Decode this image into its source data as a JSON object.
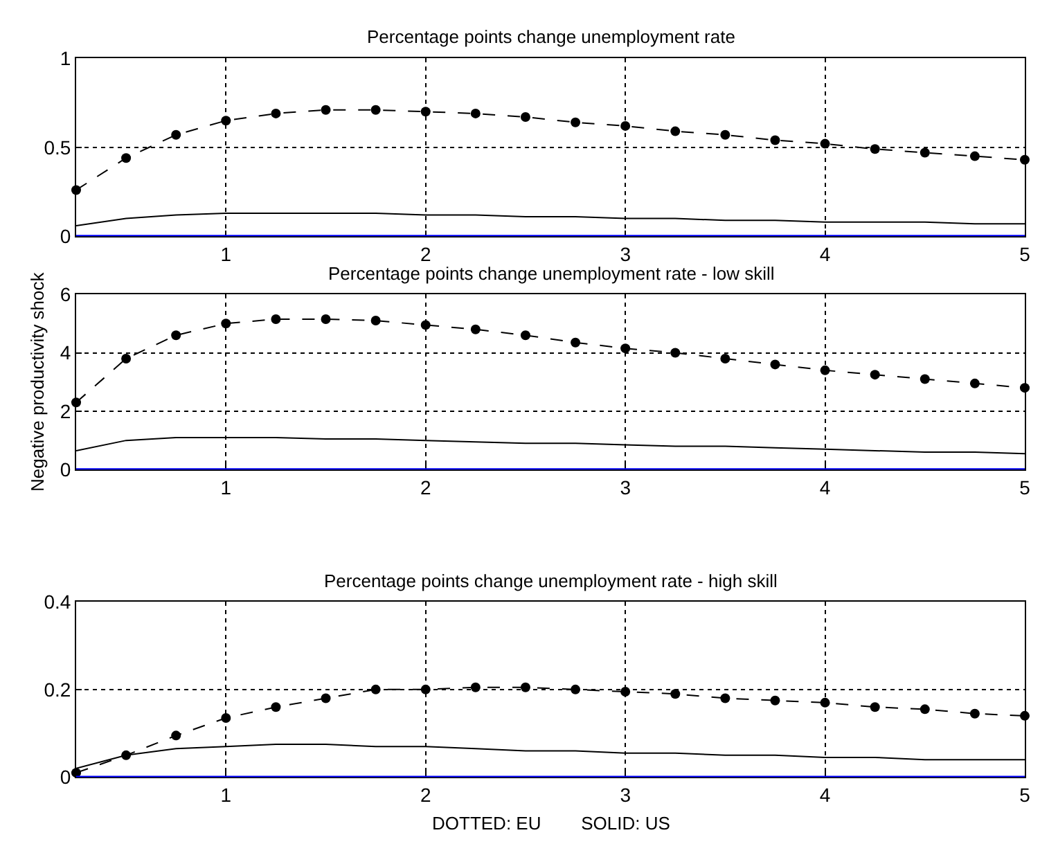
{
  "chart_data": [
    {
      "type": "line",
      "title": "Percentage points change unemployment rate",
      "x": [
        0.25,
        0.5,
        0.75,
        1,
        1.25,
        1.5,
        1.75,
        2,
        2.25,
        2.5,
        2.75,
        3,
        3.25,
        3.5,
        3.75,
        4,
        4.25,
        4.5,
        4.75,
        5
      ],
      "xlim": [
        0.25,
        5
      ],
      "xticks": [
        1,
        2,
        3,
        4,
        5
      ],
      "ylim": [
        0,
        1
      ],
      "yticks": [
        0,
        0.5,
        1
      ],
      "grid": true,
      "series": [
        {
          "color": "#000000",
          "line_style": "dashed",
          "marker": "circle",
          "values": [
            0.26,
            0.44,
            0.57,
            0.65,
            0.69,
            0.71,
            0.71,
            0.7,
            0.69,
            0.67,
            0.64,
            0.62,
            0.59,
            0.57,
            0.54,
            0.52,
            0.49,
            0.47,
            0.45,
            0.43
          ]
        },
        {
          "color": "#000000",
          "line_style": "solid",
          "marker": "none",
          "values": [
            0.06,
            0.1,
            0.12,
            0.13,
            0.13,
            0.13,
            0.13,
            0.12,
            0.12,
            0.11,
            0.11,
            0.1,
            0.1,
            0.09,
            0.09,
            0.08,
            0.08,
            0.08,
            0.07,
            0.07
          ]
        }
      ],
      "ref_lines": [
        {
          "axis": "y",
          "value": 0,
          "color": "#0000ff"
        }
      ]
    },
    {
      "type": "line",
      "title": "Percentage points change unemployment rate - low skill",
      "ylabel": "Negative productivity shock",
      "x": [
        0.25,
        0.5,
        0.75,
        1,
        1.25,
        1.5,
        1.75,
        2,
        2.25,
        2.5,
        2.75,
        3,
        3.25,
        3.5,
        3.75,
        4,
        4.25,
        4.5,
        4.75,
        5
      ],
      "xlim": [
        0.25,
        5
      ],
      "xticks": [
        1,
        2,
        3,
        4,
        5
      ],
      "ylim": [
        0,
        6
      ],
      "yticks": [
        0,
        2,
        4,
        6
      ],
      "grid": true,
      "series": [
        {
          "color": "#000000",
          "line_style": "dashed",
          "marker": "circle",
          "values": [
            2.3,
            3.8,
            4.6,
            5.0,
            5.15,
            5.15,
            5.1,
            4.95,
            4.8,
            4.6,
            4.35,
            4.15,
            4.0,
            3.8,
            3.6,
            3.4,
            3.25,
            3.1,
            2.95,
            2.8
          ]
        },
        {
          "color": "#000000",
          "line_style": "solid",
          "marker": "none",
          "values": [
            0.65,
            1.0,
            1.1,
            1.1,
            1.1,
            1.05,
            1.05,
            1.0,
            0.95,
            0.9,
            0.9,
            0.85,
            0.8,
            0.8,
            0.75,
            0.7,
            0.65,
            0.6,
            0.6,
            0.55
          ]
        }
      ],
      "ref_lines": [
        {
          "axis": "y",
          "value": 0,
          "color": "#0000ff"
        }
      ]
    },
    {
      "type": "line",
      "title": "Percentage points change unemployment rate - high skill",
      "x": [
        0.25,
        0.5,
        0.75,
        1,
        1.25,
        1.5,
        1.75,
        2,
        2.25,
        2.5,
        2.75,
        3,
        3.25,
        3.5,
        3.75,
        4,
        4.25,
        4.5,
        4.75,
        5
      ],
      "xlim": [
        0.25,
        5
      ],
      "xticks": [
        1,
        2,
        3,
        4,
        5
      ],
      "ylim": [
        0,
        0.4
      ],
      "yticks": [
        0,
        0.2,
        0.4
      ],
      "grid": true,
      "series": [
        {
          "color": "#000000",
          "line_style": "dashed",
          "marker": "circle",
          "values": [
            0.01,
            0.05,
            0.095,
            0.135,
            0.16,
            0.18,
            0.2,
            0.2,
            0.205,
            0.205,
            0.2,
            0.195,
            0.19,
            0.18,
            0.175,
            0.17,
            0.16,
            0.155,
            0.145,
            0.14
          ]
        },
        {
          "color": "#000000",
          "line_style": "solid",
          "marker": "none",
          "values": [
            0.02,
            0.05,
            0.065,
            0.07,
            0.075,
            0.075,
            0.07,
            0.07,
            0.065,
            0.06,
            0.06,
            0.055,
            0.055,
            0.05,
            0.05,
            0.045,
            0.045,
            0.04,
            0.04,
            0.04
          ]
        }
      ],
      "ref_lines": [
        {
          "axis": "y",
          "value": 0,
          "color": "#0000ff"
        }
      ],
      "annotations": [
        "DOTTED: EU        SOLID: US"
      ]
    }
  ]
}
